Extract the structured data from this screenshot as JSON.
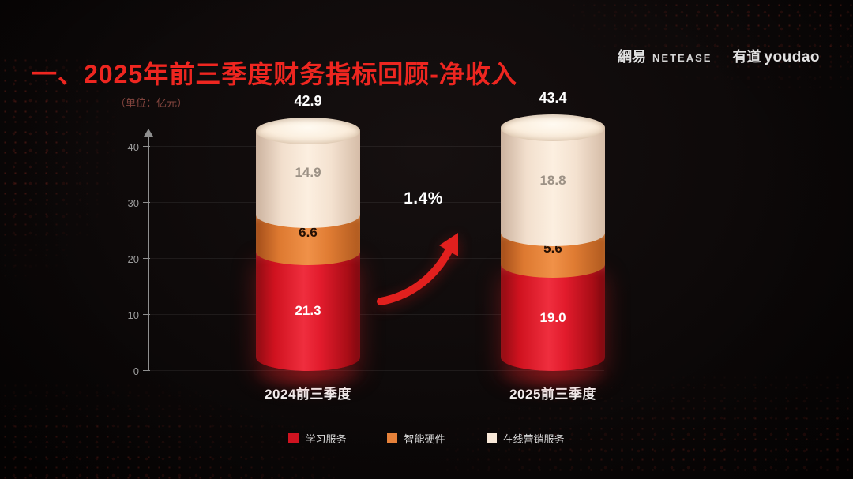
{
  "slide": {
    "title": "一、2025年前三季度财务指标回顾-净收入",
    "unit_label": "（单位：亿元）",
    "growth_label": "1.4%"
  },
  "logos": {
    "netease_cn": "網易",
    "netease_en": "NETEASE",
    "youdao_cn": "有道",
    "youdao_en": "youdao"
  },
  "chart_data": {
    "type": "bar",
    "stacked": true,
    "title": "一、2025年前三季度财务指标回顾-净收入",
    "unit": "亿元",
    "categories": [
      "2024前三季度",
      "2025前三季度"
    ],
    "series": [
      {
        "name": "学习服务",
        "color": "#cf1320",
        "values": [
          21.3,
          19.0
        ]
      },
      {
        "name": "智能硬件",
        "color": "#e5813a",
        "values": [
          6.6,
          5.6
        ]
      },
      {
        "name": "在线营销服务",
        "color": "#f8e8d8",
        "values": [
          14.9,
          18.8
        ]
      }
    ],
    "totals": [
      42.9,
      43.4
    ],
    "yticks": [
      0,
      10,
      20,
      30,
      40
    ],
    "ylim": [
      0,
      45
    ],
    "annotation": "1.4%",
    "legend_position": "bottom"
  },
  "colors": {
    "background": "#0d0909",
    "title_red": "#ee2620",
    "arrow_red": "#e2201e",
    "axis_gray": "#8f8f8f"
  }
}
